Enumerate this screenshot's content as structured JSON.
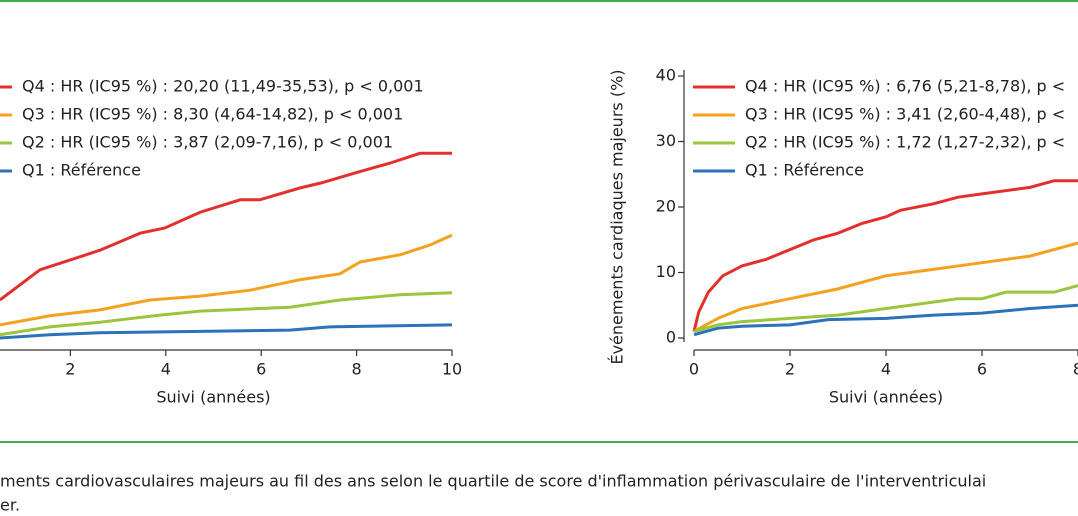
{
  "chart_data": [
    {
      "type": "line",
      "xlabel": "Suivi (années)",
      "xlim": [
        0,
        10
      ],
      "xticks": [
        2,
        4,
        6,
        8,
        10
      ],
      "ylim": [
        0,
        40
      ],
      "legend": "upper left",
      "series": [
        {
          "name": "Q4 : HR (IC95 %) : 20,20 (11,49-35,53), p < 0,001",
          "color": "#e2312d",
          "x": [
            0.52,
            1.36,
            1.99,
            2.62,
            3.46,
            3.98,
            4.72,
            5.56,
            5.97,
            6.81,
            7.27,
            7.97,
            8.7,
            9.33,
            10
          ],
          "values": [
            5.8,
            10.4,
            11.9,
            13.4,
            16.0,
            16.8,
            19.2,
            21.1,
            21.1,
            22.9,
            23.7,
            25.2,
            26.7,
            28.2,
            28.2
          ]
        },
        {
          "name": "Q3 : HR (IC95 %) : 8,30 (4,64-14,82), p < 0,001",
          "color": "#f5a01e",
          "x": [
            0.52,
            1.57,
            2.62,
            3.67,
            4.72,
            5.77,
            6.81,
            7.65,
            8.07,
            8.91,
            9.54,
            10
          ],
          "values": [
            2.0,
            3.4,
            4.3,
            5.8,
            6.4,
            7.3,
            8.9,
            9.8,
            11.6,
            12.7,
            14.2,
            15.7
          ]
        },
        {
          "name": "Q2 : HR (IC95 %) : 3,87 (2,09-7,16), p < 0,001",
          "color": "#9bc53d",
          "x": [
            0.52,
            1.57,
            2.62,
            3.88,
            4.72,
            6.6,
            7.65,
            8.91,
            10
          ],
          "values": [
            0.5,
            1.7,
            2.4,
            3.5,
            4.1,
            4.7,
            5.8,
            6.6,
            6.9
          ]
        },
        {
          "name": "Q1 : Référence",
          "color": "#2b72b8",
          "x": [
            0.52,
            1.57,
            2.62,
            6.6,
            7.44,
            10
          ],
          "values": [
            0.0,
            0.5,
            0.8,
            1.2,
            1.7,
            2.0
          ]
        }
      ]
    },
    {
      "type": "line",
      "xlabel": "Suivi (années)",
      "ylabel": "Événements cardiaques majeurs (%)",
      "xlim": [
        0,
        8
      ],
      "xticks": [
        0,
        2,
        4,
        6,
        8
      ],
      "ylim": [
        0,
        40
      ],
      "yticks": [
        0,
        10,
        20,
        30,
        40
      ],
      "legend": "upper left",
      "series": [
        {
          "name": "Q4 : HR (IC95 %) : 6,76 (5,21-8,78), p <",
          "color": "#e2312d",
          "x": [
            0,
            0.1,
            0.3,
            0.6,
            1,
            1.5,
            2,
            2.5,
            3,
            3.5,
            4,
            4.3,
            5,
            5.5,
            6,
            7,
            7.5,
            8
          ],
          "values": [
            1,
            4,
            7,
            9.5,
            11,
            12,
            13.5,
            15,
            16,
            17.5,
            18.5,
            19.5,
            20.5,
            21.5,
            22,
            23,
            24,
            24
          ]
        },
        {
          "name": "Q3 : HR (IC95 %) : 3,41 (2,60-4,48), p <",
          "color": "#f5a01e",
          "x": [
            0,
            0.5,
            1,
            2,
            3,
            3.5,
            4,
            5,
            6,
            7,
            7.5,
            8
          ],
          "values": [
            1,
            3,
            4.5,
            6,
            7.5,
            8.5,
            9.5,
            10.5,
            11.5,
            12.5,
            13.5,
            14.5
          ]
        },
        {
          "name": "Q2 : HR (IC95 %) : 1,72 (1,27-2,32), p <",
          "color": "#9bc53d",
          "x": [
            0,
            0.5,
            1,
            2,
            3,
            4,
            5,
            5.5,
            6,
            6.5,
            7.5,
            8
          ],
          "values": [
            1,
            2,
            2.5,
            3,
            3.5,
            4.5,
            5.5,
            6,
            6,
            7,
            7,
            8
          ]
        },
        {
          "name": "Q1 : Référence",
          "color": "#2b72b8",
          "x": [
            0,
            0.5,
            1,
            2,
            2.8,
            4,
            5,
            6,
            7,
            8
          ],
          "values": [
            0.5,
            1.5,
            1.8,
            2,
            2.8,
            3,
            3.5,
            3.8,
            4.5,
            5
          ]
        }
      ]
    }
  ],
  "caption": [
    "ments cardiovasculaires majeurs au fil des ans selon le quartile de score d'inflammation périvasculaire de l'interventriculai",
    "er."
  ]
}
